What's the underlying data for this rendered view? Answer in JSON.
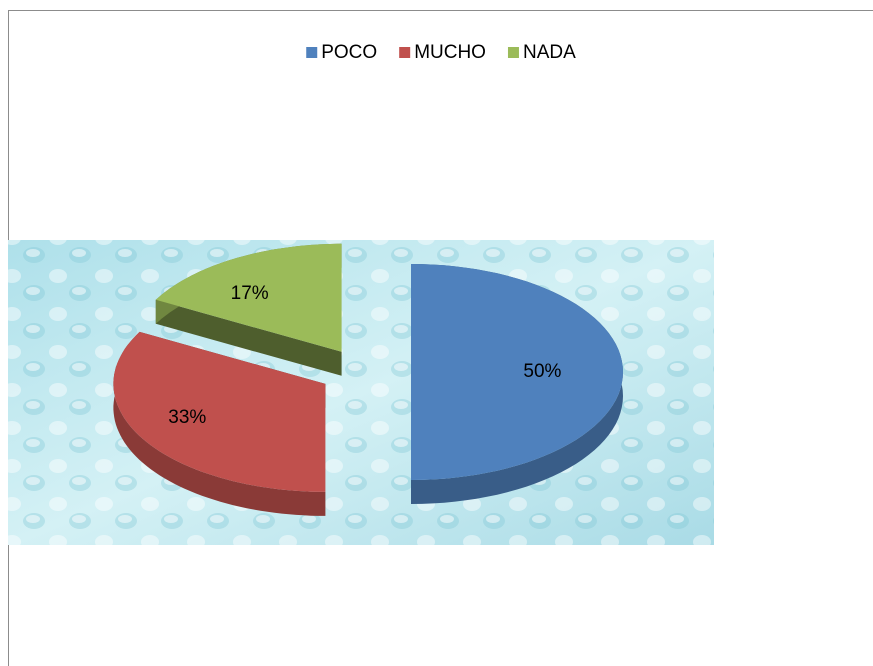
{
  "chart_data": {
    "type": "pie",
    "categories": [
      "POCO",
      "MUCHO",
      "NADA"
    ],
    "values": [
      50,
      33,
      17
    ],
    "value_labels": [
      "50%",
      "33%",
      "17%"
    ],
    "colors": [
      "#4f81bd",
      "#c0504d",
      "#9bbb59"
    ],
    "legend": "top",
    "exploded": true,
    "three_d": true
  }
}
